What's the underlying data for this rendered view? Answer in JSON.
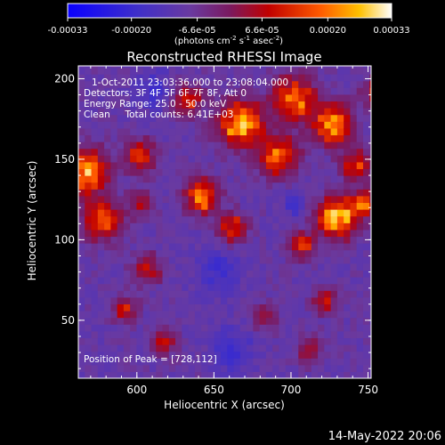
{
  "chart_data": {
    "type": "heatmap",
    "title": "Reconstructed RHESSI Image",
    "xlabel": "Heliocentric X (arcsec)",
    "ylabel": "Heliocentric Y (arcsec)",
    "xlim": [
      562,
      752
    ],
    "ylim": [
      14,
      208
    ],
    "x_ticks": [
      600,
      650,
      700,
      750
    ],
    "y_ticks": [
      50,
      100,
      150,
      200
    ],
    "colorbar": {
      "range": [
        -0.00033,
        0.00033
      ],
      "tick_values": [
        -0.00033,
        -0.0002,
        -6.6e-05,
        6.6e-05,
        0.0002,
        0.00033
      ],
      "tick_labels": [
        "-0.00033",
        "-0.00020",
        "-6.6e-05",
        "6.6e-05",
        "0.00020",
        "0.00033"
      ],
      "unit_label": "(photons cm",
      "unit_sup1": "-2",
      "unit_mid": " s",
      "unit_sup2": "-1",
      "unit_end": " asec",
      "unit_sup3": "-2",
      "unit_close": ")"
    },
    "annotations": [
      "1-Oct-2011 23:03:36.000 to 23:08:04.000",
      "Detectors: 3F 4F 5F 6F 7F 8F, Att 0",
      "Energy Range: 25.0 - 50.0 keV",
      "Clean     Total counts: 6.41E+03"
    ],
    "peak_label": "Position of Peak = [728,112]",
    "peak": [
      728,
      112
    ],
    "grid": false,
    "legend": "colorbar-top",
    "colors": {
      "background": "#000000",
      "text": "#ffffff",
      "axis": "#ffffff"
    }
  },
  "footer": {
    "timestamp": "14-May-2022 20:06"
  }
}
